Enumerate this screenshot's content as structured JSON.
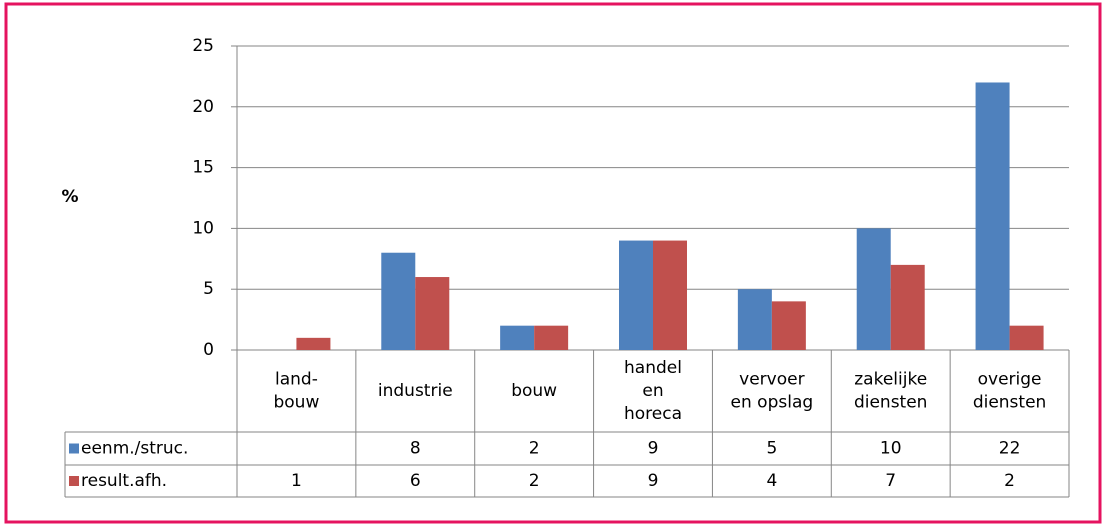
{
  "chart_data": {
    "type": "bar",
    "y_label": "%",
    "categories": [
      [
        "land-",
        "bouw"
      ],
      [
        "industrie"
      ],
      [
        "bouw"
      ],
      [
        "handel",
        "en",
        "horeca"
      ],
      [
        "vervoer",
        "en opslag"
      ],
      [
        "zakelijke",
        "diensten"
      ],
      [
        "overige",
        "diensten"
      ]
    ],
    "series": [
      {
        "name": "eenm./struc.",
        "color": "#4f81bd",
        "values": [
          null,
          8,
          2,
          9,
          5,
          10,
          22
        ]
      },
      {
        "name": "result.afh.",
        "color": "#c0504d",
        "values": [
          1,
          6,
          2,
          9,
          4,
          7,
          2
        ]
      }
    ],
    "ylim": [
      0,
      25
    ],
    "yticks": [
      0,
      5,
      10,
      15,
      20,
      25
    ],
    "grid": true
  }
}
